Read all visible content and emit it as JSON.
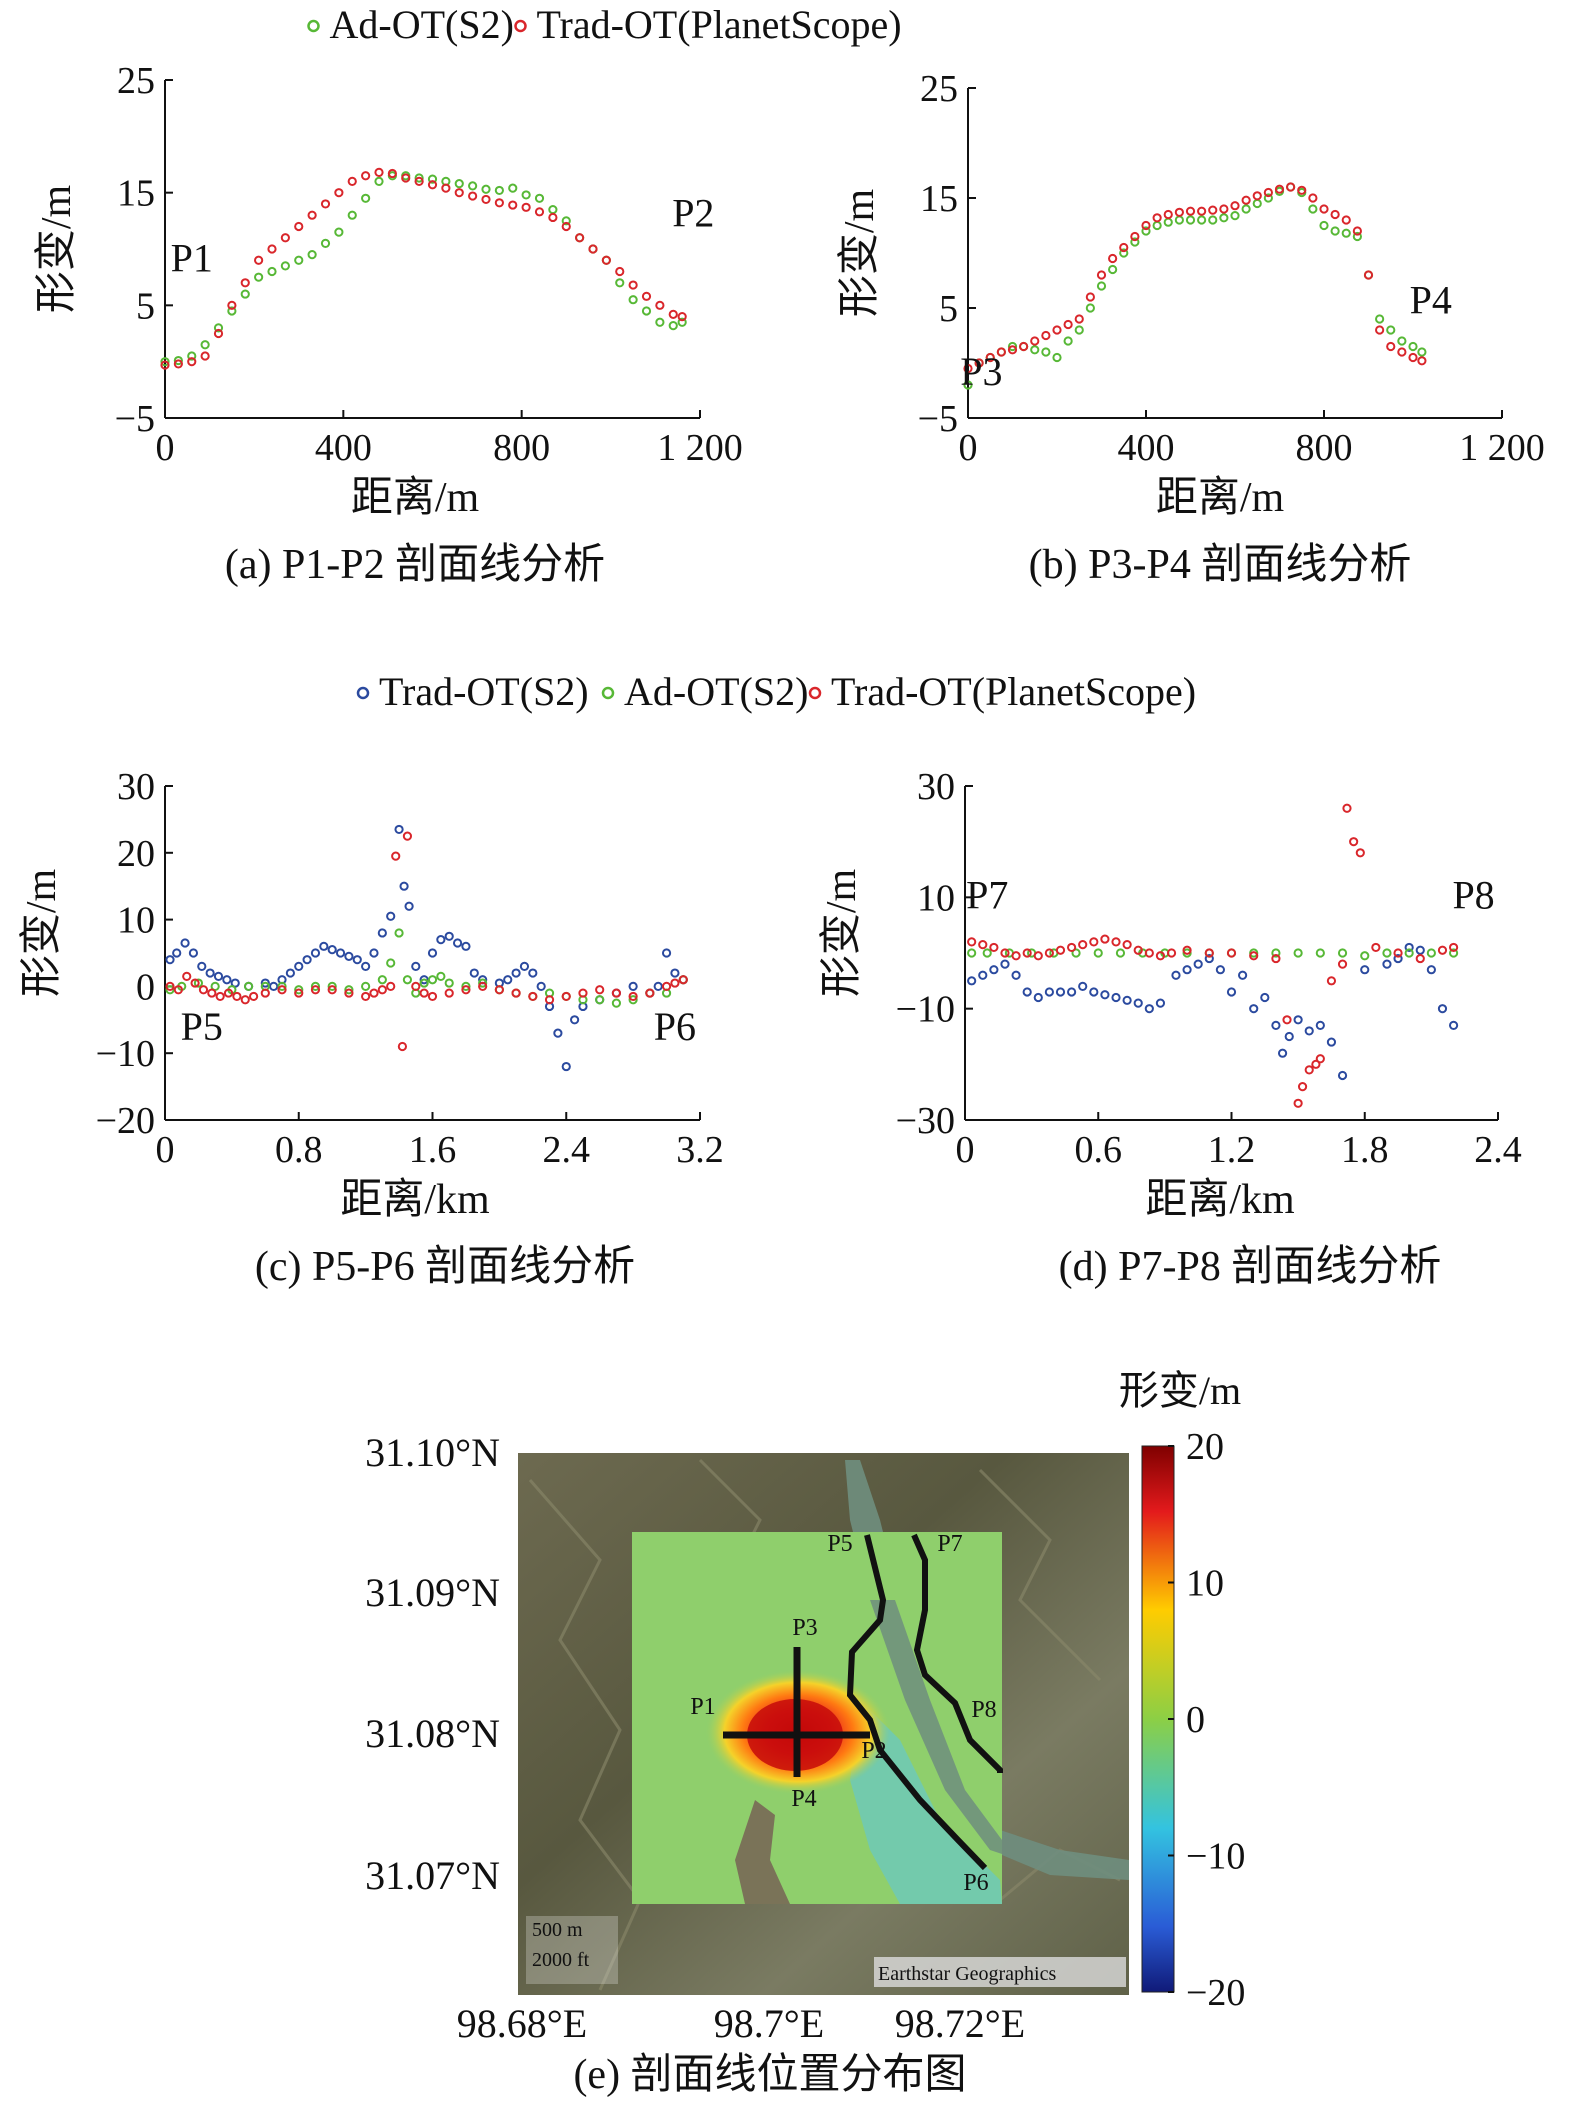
{
  "legend_top": [
    {
      "label": "Ad-OT(S2)",
      "color": "#57b836"
    },
    {
      "label": "Trad-OT(PlanetScope)",
      "color": "#d9262b"
    }
  ],
  "legend_mid": [
    {
      "label": "Trad-OT(S2)",
      "color": "#2b4a9f"
    },
    {
      "label": "Ad-OT(S2)",
      "color": "#57b836"
    },
    {
      "label": "Trad-OT(PlanetScope)",
      "color": "#d9262b"
    }
  ],
  "chart_data": [
    {
      "id": "a",
      "type": "scatter",
      "caption": "(a) P1-P2 剖面线分析",
      "xlabel": "距离/m",
      "ylabel": "形变/m",
      "xlim": [
        0,
        1200
      ],
      "ylim": [
        -5,
        25
      ],
      "xticks": [
        0,
        400,
        800,
        1200
      ],
      "xtick_labels": [
        "0",
        "400",
        "800",
        "1 200"
      ],
      "yticks": [
        -5,
        5,
        15,
        25
      ],
      "ytick_labels": [
        "−5",
        "5",
        "15",
        "25"
      ],
      "annotations": [
        {
          "text": "P1",
          "x": 60,
          "y": 8
        },
        {
          "text": "P2",
          "x": 1185,
          "y": 12
        }
      ],
      "series": [
        {
          "name": "Ad-OT(S2)",
          "color": "#57b836",
          "x": [
            0,
            30,
            60,
            90,
            120,
            150,
            180,
            210,
            240,
            270,
            300,
            330,
            360,
            390,
            420,
            450,
            480,
            510,
            540,
            570,
            600,
            630,
            660,
            690,
            720,
            750,
            780,
            810,
            840,
            870,
            900,
            930,
            960,
            990,
            1020,
            1050,
            1080,
            1110,
            1140,
            1160
          ],
          "y": [
            0,
            0.1,
            0.5,
            1.5,
            3,
            4.5,
            6,
            7.5,
            8,
            8.5,
            9,
            9.5,
            10.5,
            11.5,
            13,
            14.5,
            16,
            16.5,
            16.5,
            16.3,
            16.2,
            16,
            15.8,
            15.6,
            15.3,
            15.2,
            15.4,
            14.8,
            14.5,
            13.5,
            12.5,
            11,
            10,
            9,
            7,
            5.5,
            4.5,
            3.5,
            3.2,
            3.5
          ]
        },
        {
          "name": "Trad-OT(PlanetScope)",
          "color": "#d9262b",
          "x": [
            0,
            30,
            60,
            90,
            120,
            150,
            180,
            210,
            240,
            270,
            300,
            330,
            360,
            390,
            420,
            450,
            480,
            510,
            540,
            570,
            600,
            630,
            660,
            690,
            720,
            750,
            780,
            810,
            840,
            870,
            900,
            930,
            960,
            990,
            1020,
            1050,
            1080,
            1110,
            1140,
            1160
          ],
          "y": [
            -0.3,
            -0.2,
            0,
            0.5,
            2.5,
            5,
            7,
            9,
            10,
            11,
            12,
            13,
            14,
            15,
            16,
            16.5,
            16.8,
            16.7,
            16.3,
            16,
            15.7,
            15.4,
            15,
            14.7,
            14.4,
            14.1,
            13.9,
            13.7,
            13.3,
            12.8,
            12,
            11,
            10,
            9,
            8,
            6.8,
            5.8,
            5,
            4.2,
            4
          ]
        }
      ]
    },
    {
      "id": "b",
      "type": "scatter",
      "caption": "(b) P3-P4 剖面线分析",
      "xlabel": "距离/m",
      "ylabel": "形变/m",
      "xlim": [
        0,
        1200
      ],
      "ylim": [
        -5,
        25
      ],
      "xticks": [
        0,
        400,
        800,
        1200
      ],
      "xtick_labels": [
        "0",
        "400",
        "800",
        "1 200"
      ],
      "yticks": [
        -5,
        5,
        15,
        25
      ],
      "ytick_labels": [
        "−5",
        "5",
        "15",
        "25"
      ],
      "annotations": [
        {
          "text": "P3",
          "x": 30,
          "y": -2
        },
        {
          "text": "P4",
          "x": 1040,
          "y": 4.5
        }
      ],
      "series": [
        {
          "name": "Ad-OT(S2)",
          "color": "#57b836",
          "x": [
            0,
            25,
            50,
            75,
            100,
            125,
            150,
            175,
            200,
            225,
            250,
            275,
            300,
            325,
            350,
            375,
            400,
            425,
            450,
            475,
            500,
            525,
            550,
            575,
            600,
            625,
            650,
            675,
            700,
            725,
            750,
            775,
            800,
            825,
            850,
            875,
            900,
            925,
            950,
            975,
            1000,
            1020
          ],
          "y": [
            -2,
            0,
            0.5,
            1,
            1.5,
            1.5,
            1.2,
            1,
            0.5,
            2,
            3,
            5,
            7,
            8.5,
            10,
            11,
            12,
            12.5,
            12.8,
            13,
            13,
            13,
            13,
            13.2,
            13.4,
            14,
            14.5,
            15,
            15.6,
            16,
            15.5,
            14,
            12.5,
            12,
            11.8,
            11.5,
            8,
            4,
            3,
            2,
            1.5,
            1
          ]
        },
        {
          "name": "Trad-OT(PlanetScope)",
          "color": "#d9262b",
          "x": [
            0,
            25,
            50,
            75,
            100,
            125,
            150,
            175,
            200,
            225,
            250,
            275,
            300,
            325,
            350,
            375,
            400,
            425,
            450,
            475,
            500,
            525,
            550,
            575,
            600,
            625,
            650,
            675,
            700,
            725,
            750,
            775,
            800,
            825,
            850,
            875,
            900,
            925,
            950,
            975,
            1000,
            1020
          ],
          "y": [
            -0.5,
            0,
            0.5,
            1,
            1.2,
            1.5,
            2,
            2.5,
            3,
            3.5,
            4,
            6,
            8,
            9.5,
            10.5,
            11.5,
            12.5,
            13.2,
            13.5,
            13.7,
            13.8,
            13.8,
            13.9,
            14,
            14.3,
            14.8,
            15.2,
            15.5,
            15.8,
            16,
            15.7,
            15,
            14,
            13.5,
            13,
            12,
            8,
            3,
            1.5,
            1,
            0.5,
            0.2
          ]
        }
      ]
    },
    {
      "id": "c",
      "type": "scatter",
      "caption": "(c) P5-P6 剖面线分析",
      "xlabel": "距离/km",
      "ylabel": "形变/m",
      "xlim": [
        0,
        3.2
      ],
      "ylim": [
        -20,
        30
      ],
      "xticks": [
        0,
        0.8,
        1.6,
        2.4,
        3.2
      ],
      "xtick_labels": [
        "0",
        "0.8",
        "1.6",
        "2.4",
        "3.2"
      ],
      "yticks": [
        -20,
        -10,
        0,
        10,
        20,
        30
      ],
      "ytick_labels": [
        "−20",
        "−10",
        "0",
        "10",
        "20",
        "30"
      ],
      "annotations": [
        {
          "text": "P5",
          "x": 0.22,
          "y": -8
        },
        {
          "text": "P6",
          "x": 3.05,
          "y": -8
        }
      ],
      "series": [
        {
          "name": "Trad-OT(S2)",
          "color": "#2b4a9f",
          "x": [
            0.03,
            0.07,
            0.12,
            0.17,
            0.22,
            0.27,
            0.32,
            0.37,
            0.42,
            0.5,
            0.6,
            0.65,
            0.7,
            0.75,
            0.8,
            0.85,
            0.9,
            0.95,
            1.0,
            1.05,
            1.1,
            1.15,
            1.2,
            1.25,
            1.3,
            1.35,
            1.4,
            1.43,
            1.46,
            1.5,
            1.55,
            1.6,
            1.65,
            1.7,
            1.75,
            1.8,
            1.85,
            1.9,
            2.0,
            2.05,
            2.1,
            2.15,
            2.2,
            2.25,
            2.3,
            2.35,
            2.4,
            2.45,
            2.5,
            2.6,
            2.7,
            2.8,
            2.9,
            2.95,
            3.0,
            3.05,
            3.1
          ],
          "y": [
            4,
            5,
            6.5,
            5,
            3,
            2,
            1.5,
            1,
            0.5,
            0,
            0.5,
            0,
            1,
            2,
            3,
            4,
            5,
            6,
            5.5,
            5,
            4.5,
            4,
            3,
            5,
            8,
            10.5,
            23.5,
            15,
            12,
            3,
            1,
            5,
            7,
            7.5,
            6.5,
            6,
            2,
            1,
            0.5,
            1,
            2,
            3,
            2,
            0,
            -3,
            -7,
            -12,
            -5,
            -3,
            -2,
            -1,
            0,
            -1,
            0,
            5,
            2,
            1
          ]
        },
        {
          "name": "Ad-OT(S2)",
          "color": "#57b836",
          "x": [
            0.03,
            0.1,
            0.2,
            0.3,
            0.4,
            0.5,
            0.6,
            0.7,
            0.8,
            0.9,
            1.0,
            1.1,
            1.2,
            1.3,
            1.35,
            1.4,
            1.45,
            1.5,
            1.55,
            1.6,
            1.65,
            1.7,
            1.8,
            1.9,
            2.0,
            2.1,
            2.2,
            2.3,
            2.4,
            2.5,
            2.6,
            2.7,
            2.8,
            2.9,
            3.0,
            3.1
          ],
          "y": [
            -0.5,
            0,
            0.5,
            0,
            -0.5,
            0,
            0,
            0,
            -0.5,
            0,
            0,
            -0.5,
            0,
            1,
            3.5,
            8,
            1,
            -1,
            0.5,
            1,
            1.5,
            0.5,
            0,
            0.5,
            -0.5,
            -1,
            -1.5,
            -1,
            -1.5,
            -2,
            -2,
            -2.5,
            -2,
            -1,
            -1,
            1
          ]
        },
        {
          "name": "Trad-OT(PlanetScope)",
          "color": "#d9262b",
          "x": [
            0.03,
            0.08,
            0.13,
            0.18,
            0.23,
            0.28,
            0.33,
            0.38,
            0.43,
            0.48,
            0.53,
            0.6,
            0.7,
            0.8,
            0.9,
            1.0,
            1.1,
            1.2,
            1.25,
            1.3,
            1.35,
            1.38,
            1.42,
            1.45,
            1.5,
            1.55,
            1.6,
            1.7,
            1.8,
            1.9,
            2.0,
            2.1,
            2.2,
            2.3,
            2.4,
            2.5,
            2.6,
            2.7,
            2.8,
            2.9,
            3.0,
            3.05,
            3.1
          ],
          "y": [
            0,
            -0.5,
            1.5,
            0.5,
            -0.5,
            -1,
            -1.5,
            -1,
            -1.5,
            -2,
            -1.5,
            -1,
            -0.5,
            -1,
            -0.5,
            -0.5,
            -1,
            -1.5,
            -1,
            -0.5,
            0,
            19.5,
            -9,
            22.5,
            0,
            -1,
            -1.5,
            -1,
            -0.5,
            0,
            -0.5,
            -1,
            -1.5,
            -2,
            -1.5,
            -1,
            -0.5,
            -1,
            -1.5,
            -1,
            0,
            0.5,
            1
          ]
        }
      ]
    },
    {
      "id": "d",
      "type": "scatter",
      "caption": "(d) P7-P8 剖面线分析",
      "xlabel": "距离/km",
      "ylabel": "形变/m",
      "xlim": [
        0,
        2.4
      ],
      "ylim": [
        -30,
        30
      ],
      "xticks": [
        0,
        0.6,
        1.2,
        1.8,
        2.4
      ],
      "xtick_labels": [
        "0",
        "0.6",
        "1.2",
        "1.8",
        "2.4"
      ],
      "yticks": [
        -30,
        -10,
        10,
        30
      ],
      "ytick_labels": [
        "−30",
        "−10",
        "10",
        "30"
      ],
      "annotations": [
        {
          "text": "P7",
          "x": 0.1,
          "y": 8
        },
        {
          "text": "P8",
          "x": 2.29,
          "y": 8
        }
      ],
      "series": [
        {
          "name": "Trad-OT(S2)",
          "color": "#2b4a9f",
          "x": [
            0.03,
            0.08,
            0.13,
            0.18,
            0.23,
            0.28,
            0.33,
            0.38,
            0.43,
            0.48,
            0.53,
            0.58,
            0.63,
            0.68,
            0.73,
            0.78,
            0.83,
            0.88,
            0.95,
            1.0,
            1.05,
            1.1,
            1.15,
            1.2,
            1.25,
            1.3,
            1.35,
            1.4,
            1.43,
            1.46,
            1.5,
            1.55,
            1.6,
            1.65,
            1.7,
            1.8,
            1.9,
            1.95,
            2.0,
            2.05,
            2.1,
            2.15,
            2.2
          ],
          "y": [
            -5,
            -4,
            -3,
            -2,
            -4,
            -7,
            -8,
            -7,
            -7,
            -7,
            -6,
            -7,
            -7.5,
            -8,
            -8.5,
            -9,
            -10,
            -9,
            -4,
            -3,
            -2,
            -1,
            -3,
            -7,
            -4,
            -10,
            -8,
            -13,
            -18,
            -15,
            -12,
            -14,
            -13,
            -16,
            -22,
            -3,
            -2,
            -1,
            1,
            0.5,
            -3,
            -10,
            -13
          ]
        },
        {
          "name": "Ad-OT(S2)",
          "color": "#57b836",
          "x": [
            0.03,
            0.1,
            0.2,
            0.3,
            0.4,
            0.5,
            0.6,
            0.7,
            0.8,
            0.9,
            1.0,
            1.1,
            1.2,
            1.3,
            1.4,
            1.5,
            1.6,
            1.7,
            1.8,
            1.9,
            2.0,
            2.1,
            2.2
          ],
          "y": [
            0,
            0,
            0,
            0,
            0,
            0,
            0,
            0,
            0,
            0,
            0,
            0,
            0,
            0,
            0,
            0,
            0,
            0,
            -0.5,
            0,
            0,
            0,
            0
          ]
        },
        {
          "name": "Trad-OT(PlanetScope)",
          "color": "#d9262b",
          "x": [
            0.03,
            0.08,
            0.13,
            0.18,
            0.23,
            0.28,
            0.33,
            0.38,
            0.43,
            0.48,
            0.53,
            0.58,
            0.63,
            0.68,
            0.73,
            0.78,
            0.83,
            0.88,
            0.93,
            1.0,
            1.1,
            1.2,
            1.3,
            1.4,
            1.45,
            1.5,
            1.52,
            1.55,
            1.58,
            1.6,
            1.65,
            1.7,
            1.72,
            1.75,
            1.78,
            1.85,
            1.95,
            2.05,
            2.15,
            2.2
          ],
          "y": [
            2,
            1.5,
            1,
            0,
            -0.5,
            0,
            -0.5,
            0,
            0.5,
            1,
            1.5,
            2,
            2.5,
            2,
            1.5,
            0.5,
            0,
            -0.5,
            0,
            0.5,
            0,
            0,
            -0.5,
            -1,
            -12,
            -27,
            -24,
            -21,
            -20,
            -19,
            -5,
            -2,
            26,
            20,
            18,
            1,
            0,
            -1,
            0.5,
            1
          ]
        }
      ]
    },
    {
      "id": "e",
      "type": "heatmap",
      "caption": "(e) 剖面线位置分布图",
      "colorbar_title": "形变/m",
      "colorbar_range": [
        -20,
        20
      ],
      "colorbar_ticks": [
        "20",
        "10",
        "0",
        "−10",
        "−20"
      ],
      "colorbar_tick_values": [
        20,
        10,
        0,
        -10,
        -20
      ],
      "lat_ticks": [
        "31.10°N",
        "31.09°N",
        "31.08°N",
        "31.07°N"
      ],
      "lon_ticks": [
        "98.68°E",
        "98.7°E",
        "98.72°E"
      ],
      "profile_labels": [
        "P1",
        "P2",
        "P3",
        "P4",
        "P5",
        "P6",
        "P7",
        "P8"
      ],
      "scale_bar": [
        "500 m",
        "2000 ft"
      ],
      "attribution": "Earthstar Geographics"
    }
  ]
}
